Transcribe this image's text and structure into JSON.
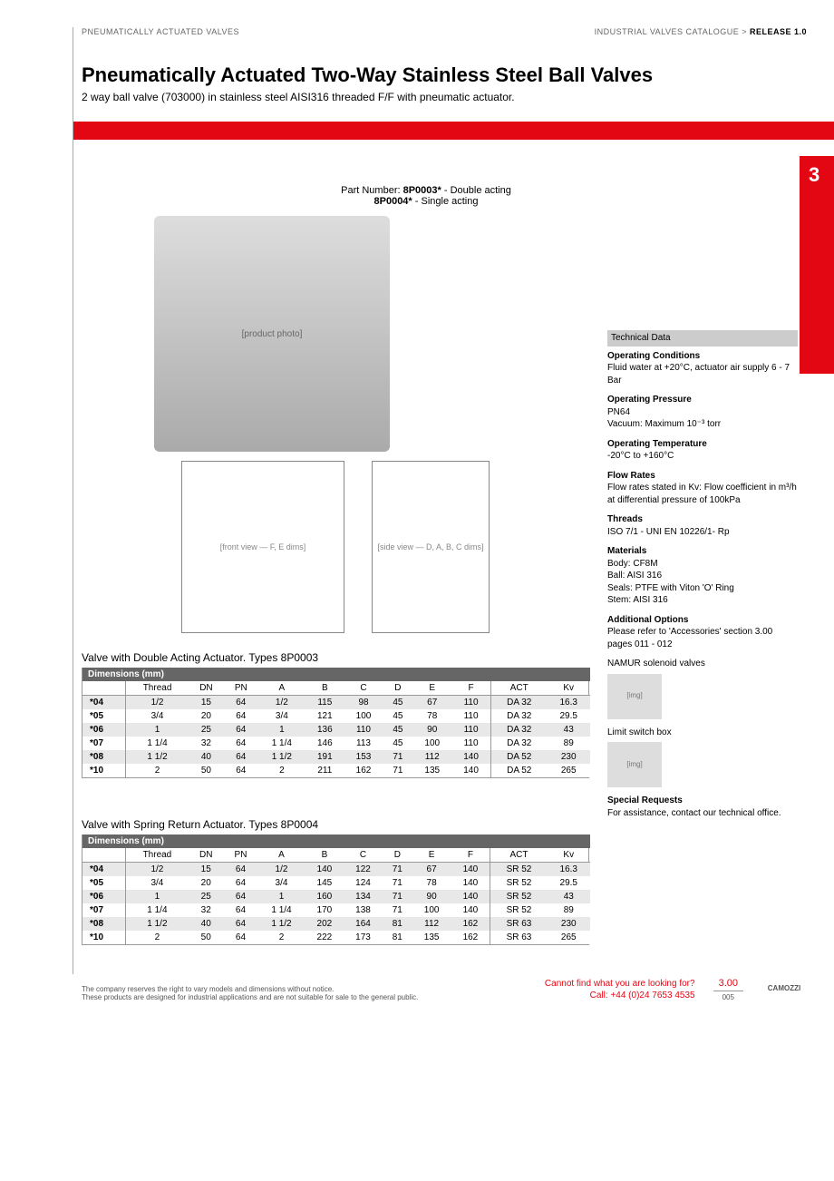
{
  "header": {
    "left": "PNEUMATICALLY ACTUATED VALVES",
    "right_a": "INDUSTRIAL VALVES CATALOGUE > ",
    "right_b": "RELEASE 1.0"
  },
  "title": "Pneumatically Actuated Two-Way Stainless Steel Ball Valves",
  "subtitle": "2 way ball valve (703000) in stainless steel AISI316 threaded F/F with pneumatic actuator.",
  "section_num": "3",
  "part_numbers": {
    "label": "Part Number: ",
    "p1_code": "8P0003*",
    "p1_desc": " - Double acting",
    "p2_code": "8P0004*",
    "p2_desc": " - Single acting"
  },
  "hero_placeholder": "[product photo]",
  "diagram_f": "[front view — F, E dims]",
  "diagram_d": "[side view — D, A, B, C dims]",
  "table1": {
    "title": "Valve with Double Acting Actuator.  Types 8P0003",
    "header": "Dimensions (mm)",
    "columns": [
      "",
      "Thread",
      "DN",
      "PN",
      "A",
      "B",
      "C",
      "D",
      "E",
      "F",
      "ACT",
      "Kv"
    ],
    "rows": [
      [
        "*04",
        "1/2",
        "15",
        "64",
        "1/2",
        "115",
        "98",
        "45",
        "67",
        "110",
        "DA 32",
        "16.3"
      ],
      [
        "*05",
        "3/4",
        "20",
        "64",
        "3/4",
        "121",
        "100",
        "45",
        "78",
        "110",
        "DA 32",
        "29.5"
      ],
      [
        "*06",
        "1",
        "25",
        "64",
        "1",
        "136",
        "110",
        "45",
        "90",
        "110",
        "DA 32",
        "43"
      ],
      [
        "*07",
        "1 1/4",
        "32",
        "64",
        "1 1/4",
        "146",
        "113",
        "45",
        "100",
        "110",
        "DA 32",
        "89"
      ],
      [
        "*08",
        "1 1/2",
        "40",
        "64",
        "1 1/2",
        "191",
        "153",
        "71",
        "112",
        "140",
        "DA 52",
        "230"
      ],
      [
        "*10",
        "2",
        "50",
        "64",
        "2",
        "211",
        "162",
        "71",
        "135",
        "140",
        "DA 52",
        "265"
      ]
    ]
  },
  "table2": {
    "title": "Valve with Spring Return Actuator.  Types 8P0004",
    "header": "Dimensions (mm)",
    "columns": [
      "",
      "Thread",
      "DN",
      "PN",
      "A",
      "B",
      "C",
      "D",
      "E",
      "F",
      "ACT",
      "Kv"
    ],
    "rows": [
      [
        "*04",
        "1/2",
        "15",
        "64",
        "1/2",
        "140",
        "122",
        "71",
        "67",
        "140",
        "SR 52",
        "16.3"
      ],
      [
        "*05",
        "3/4",
        "20",
        "64",
        "3/4",
        "145",
        "124",
        "71",
        "78",
        "140",
        "SR 52",
        "29.5"
      ],
      [
        "*06",
        "1",
        "25",
        "64",
        "1",
        "160",
        "134",
        "71",
        "90",
        "140",
        "SR 52",
        "43"
      ],
      [
        "*07",
        "1 1/4",
        "32",
        "64",
        "1 1/4",
        "170",
        "138",
        "71",
        "100",
        "140",
        "SR 52",
        "89"
      ],
      [
        "*08",
        "1 1/2",
        "40",
        "64",
        "1 1/2",
        "202",
        "164",
        "81",
        "112",
        "162",
        "SR 63",
        "230"
      ],
      [
        "*10",
        "2",
        "50",
        "64",
        "2",
        "222",
        "173",
        "81",
        "135",
        "162",
        "SR 63",
        "265"
      ]
    ]
  },
  "tech": {
    "header": "Technical Data",
    "items": [
      {
        "h": "Operating Conditions",
        "t": "Fluid water at +20°C, actuator air supply 6 - 7 Bar"
      },
      {
        "h": "Operating Pressure",
        "t": "PN64\nVacuum: Maximum 10⁻³ torr"
      },
      {
        "h": "Operating Temperature",
        "t": "-20°C to +160°C"
      },
      {
        "h": "Flow Rates",
        "t": "Flow rates stated in Kv: Flow coefficient in m³/h at differential pressure of 100kPa"
      },
      {
        "h": "Threads",
        "t": "ISO 7/1 - UNI EN 10226/1- Rp"
      },
      {
        "h": "Materials",
        "t": "Body: CF8M\nBall: AISI 316\nSeals: PTFE with Viton 'O' Ring\nStem: AISI 316"
      },
      {
        "h": "Additional Options",
        "t": "Please refer to 'Accessories' section 3.00 pages 011 - 012"
      }
    ],
    "namur": "NAMUR solenoid valves",
    "limit": "Limit switch box",
    "special_h": "Special Requests",
    "special_t": "For assistance, contact our technical office."
  },
  "footer": {
    "disclaimer1": "The company reserves the right to vary models and dimensions without notice.",
    "disclaimer2": "These products are designed for industrial applications and are not suitable for sale to the general public.",
    "help1": "Cannot find what you are looking for?",
    "help2": "Call: +44 (0)24 7653 4535",
    "section": "3.00",
    "page": "005",
    "brand": "CAMOZZI"
  }
}
